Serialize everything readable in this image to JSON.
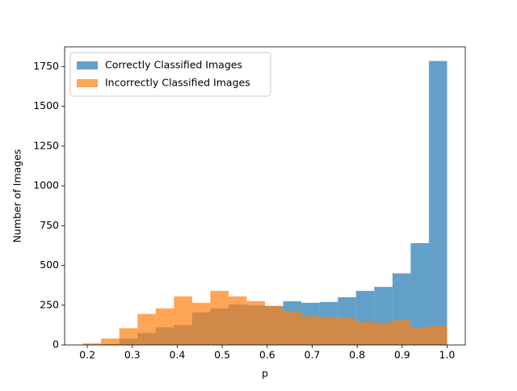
{
  "chart_data": {
    "type": "histogram",
    "xlabel": "p",
    "ylabel": "Number of Images",
    "bins": [
      0.19,
      0.2305,
      0.271,
      0.3115,
      0.352,
      0.3925,
      0.433,
      0.4735,
      0.514,
      0.5545,
      0.595,
      0.6355,
      0.676,
      0.7165,
      0.757,
      0.7975,
      0.838,
      0.8785,
      0.919,
      0.9595,
      1.0
    ],
    "series": [
      {
        "name": "Correctly Classified Images",
        "color": "#1f77b4",
        "values": [
          0,
          5,
          40,
          75,
          110,
          125,
          205,
          230,
          255,
          250,
          245,
          275,
          265,
          270,
          300,
          340,
          365,
          450,
          640,
          1785
        ]
      },
      {
        "name": "Incorrectly Classified Images",
        "color": "#ff7f0e",
        "values": [
          10,
          40,
          105,
          195,
          230,
          305,
          265,
          340,
          305,
          275,
          245,
          210,
          180,
          175,
          170,
          145,
          140,
          155,
          110,
          120
        ]
      }
    ],
    "opacity": 0.7,
    "xlim": [
      0.1495,
      1.0405
    ],
    "xticks": [
      0.2,
      0.3,
      0.4,
      0.5,
      0.6,
      0.7,
      0.8,
      0.9,
      {
        "value": 1,
        "label": "1.0"
      }
    ],
    "ylim": [
      0,
      1874
    ],
    "yticks": [
      0,
      250,
      500,
      750,
      1000,
      1250,
      1500,
      1750
    ],
    "legend": "upper left"
  }
}
